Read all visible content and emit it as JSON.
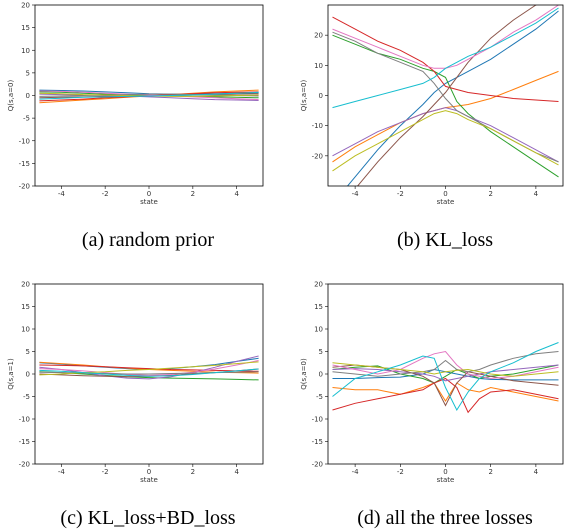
{
  "figure": {
    "colors": [
      "#1f77b4",
      "#ff7f0e",
      "#2ca02c",
      "#d62728",
      "#9467bd",
      "#8c564b",
      "#e377c2",
      "#7f7f7f",
      "#bcbd22",
      "#17becf"
    ]
  },
  "chart_data": [
    {
      "type": "line",
      "caption": "(a) random prior",
      "xlabel": "state",
      "ylabel": "Q(s,a=0)",
      "xlim": [
        -5.2,
        5.2
      ],
      "ylim": [
        -20,
        20
      ],
      "xticks": [
        "-4",
        "-2",
        "0",
        "2",
        "4"
      ],
      "yticks": [
        "20",
        "15",
        "10",
        "5",
        "0",
        "-5",
        "-10",
        "-15",
        "-20"
      ],
      "x": [
        -5,
        -4,
        -3,
        -2,
        -1,
        0,
        1,
        2,
        3,
        4,
        5
      ],
      "series": [
        {
          "values": [
            1.2,
            1.1,
            1.0,
            0.8,
            0.6,
            0.4,
            0.3,
            0.3,
            0.4,
            0.5,
            0.6
          ]
        },
        {
          "values": [
            -1.6,
            -1.3,
            -1.0,
            -0.7,
            -0.4,
            -0.1,
            0.2,
            0.5,
            0.8,
            1.0,
            1.2
          ]
        },
        {
          "values": [
            0.8,
            0.7,
            0.5,
            0.3,
            0.1,
            0.0,
            -0.1,
            -0.2,
            -0.3,
            -0.4,
            -0.5
          ]
        },
        {
          "values": [
            -1.2,
            -1.0,
            -0.8,
            -0.5,
            -0.3,
            0.0,
            0.2,
            0.4,
            0.6,
            0.7,
            0.8
          ]
        },
        {
          "values": [
            0.3,
            0.2,
            0.1,
            0.0,
            -0.1,
            -0.3,
            -0.5,
            -0.7,
            -0.9,
            -1.0,
            -1.1
          ]
        },
        {
          "values": [
            -0.5,
            -0.4,
            -0.3,
            -0.2,
            -0.2,
            -0.1,
            0.0,
            0.1,
            0.2,
            0.3,
            0.4
          ]
        },
        {
          "values": [
            1.0,
            0.9,
            0.7,
            0.5,
            0.3,
            0.1,
            -0.1,
            -0.3,
            -0.5,
            -0.7,
            -0.9
          ]
        },
        {
          "values": [
            -0.2,
            -0.1,
            0.0,
            0.1,
            0.2,
            0.3,
            0.3,
            0.2,
            0.1,
            0.0,
            -0.1
          ]
        },
        {
          "values": [
            0.5,
            0.4,
            0.2,
            0.1,
            0.0,
            -0.1,
            -0.2,
            -0.2,
            -0.1,
            0.0,
            0.1
          ]
        },
        {
          "values": [
            -0.8,
            -0.6,
            -0.4,
            -0.3,
            -0.2,
            -0.1,
            0.0,
            0.1,
            0.3,
            0.5,
            0.7
          ]
        }
      ]
    },
    {
      "type": "line",
      "caption": "(b) KL_loss",
      "xlabel": "state",
      "ylabel": "Q(s,a=0)",
      "xlim": [
        -5.2,
        5.2
      ],
      "ylim": [
        -30,
        30
      ],
      "xticks": [
        "-4",
        "-2",
        "0",
        "2",
        "4"
      ],
      "yticks": [
        "20",
        "10",
        "0",
        "-10",
        "-20"
      ],
      "x": [
        -5,
        -4,
        -3,
        -2,
        -1,
        -0.5,
        0,
        0.5,
        1,
        2,
        3,
        4,
        5
      ],
      "series": [
        {
          "values": [
            -36,
            -27,
            -18,
            -10,
            -3,
            1,
            4,
            6,
            8,
            12,
            17,
            22,
            28
          ]
        },
        {
          "values": [
            -22,
            -17,
            -13,
            -9,
            -6,
            -5,
            -4,
            -3.5,
            -3,
            -1,
            2,
            5,
            8
          ]
        },
        {
          "values": [
            20,
            17,
            14,
            12,
            9,
            8,
            6,
            -2,
            -6,
            -12,
            -17,
            -22,
            -27
          ]
        },
        {
          "values": [
            26,
            22,
            18,
            15,
            11,
            8,
            3,
            2,
            1,
            0,
            -1,
            -1.5,
            -2
          ]
        },
        {
          "values": [
            -20,
            -16,
            -12,
            -9,
            -6,
            -5,
            -4,
            -5,
            -7,
            -10,
            -14,
            -18,
            -22
          ]
        },
        {
          "values": [
            -40,
            -31,
            -22,
            -14,
            -7,
            -3,
            1,
            6,
            11,
            19,
            25,
            30,
            34
          ]
        },
        {
          "values": [
            22,
            19,
            16,
            13,
            10,
            9,
            9,
            10,
            12,
            16,
            21,
            25,
            30
          ]
        },
        {
          "values": [
            21,
            18,
            14,
            11,
            8,
            4,
            -1,
            -5,
            -7,
            -11,
            -15,
            -19,
            -22
          ]
        },
        {
          "values": [
            -25,
            -20,
            -16,
            -12,
            -8,
            -6,
            -5,
            -6,
            -8,
            -11,
            -15,
            -19,
            -23
          ]
        },
        {
          "values": [
            -4,
            -2,
            0,
            2,
            4,
            6,
            9,
            11,
            13,
            16,
            20,
            24,
            29
          ]
        }
      ]
    },
    {
      "type": "line",
      "caption": "(c) KL_loss+BD_loss",
      "xlabel": "state",
      "ylabel": "Q(s,a=1)",
      "xlim": [
        -5.2,
        5.2
      ],
      "ylim": [
        -20,
        20
      ],
      "xticks": [
        "-4",
        "-2",
        "0",
        "2",
        "4"
      ],
      "yticks": [
        "20",
        "15",
        "10",
        "5",
        "0",
        "-5",
        "-10",
        "-15",
        "-20"
      ],
      "x": [
        -5,
        -4,
        -3,
        -2,
        -1,
        0,
        1,
        2,
        3,
        4,
        5
      ],
      "series": [
        {
          "values": [
            2.5,
            2.2,
            1.8,
            1.5,
            1.2,
            1.0,
            1.2,
            1.6,
            2.1,
            2.8,
            3.5
          ]
        },
        {
          "values": [
            2.6,
            2.3,
            2.0,
            1.6,
            1.3,
            1.0,
            0.8,
            0.6,
            0.4,
            0.3,
            0.2
          ]
        },
        {
          "values": [
            0.5,
            0.3,
            0.0,
            -0.3,
            -0.6,
            -0.8,
            -0.9,
            -1.0,
            -1.1,
            -1.2,
            -1.3
          ]
        },
        {
          "values": [
            2.0,
            1.9,
            1.8,
            1.6,
            1.4,
            1.2,
            1.0,
            0.9,
            0.8,
            0.7,
            0.6
          ]
        },
        {
          "values": [
            1.5,
            1.0,
            0.3,
            -0.4,
            -0.9,
            -1.1,
            -0.6,
            0.3,
            1.5,
            2.8,
            4.0
          ]
        },
        {
          "values": [
            0.0,
            -0.2,
            -0.4,
            -0.5,
            -0.6,
            -0.5,
            -0.3,
            0.0,
            0.3,
            0.7,
            1.1
          ]
        },
        {
          "values": [
            1.2,
            1.0,
            0.7,
            0.3,
            -0.1,
            -0.3,
            -0.1,
            0.4,
            1.1,
            2.0,
            3.0
          ]
        },
        {
          "values": [
            0.4,
            0.3,
            0.2,
            0.1,
            0.0,
            0.0,
            0.1,
            0.2,
            0.3,
            0.4,
            0.5
          ]
        },
        {
          "values": [
            -0.2,
            0.0,
            0.3,
            0.5,
            0.8,
            1.0,
            1.3,
            1.6,
            1.9,
            2.3,
            2.7
          ]
        },
        {
          "values": [
            0.8,
            0.6,
            0.3,
            0.0,
            -0.3,
            -0.5,
            -0.4,
            -0.1,
            0.3,
            0.7,
            1.1
          ]
        }
      ]
    },
    {
      "type": "line",
      "caption": "(d) all the three losses",
      "xlabel": "state",
      "ylabel": "Q(s,a=0)",
      "xlim": [
        -5.2,
        5.2
      ],
      "ylim": [
        -20,
        20
      ],
      "xticks": [
        "-4",
        "-2",
        "0",
        "2",
        "4"
      ],
      "yticks": [
        "20",
        "15",
        "10",
        "5",
        "0",
        "-5",
        "-10",
        "-15",
        "-20"
      ],
      "x": [
        -5,
        -4,
        -3,
        -2,
        -1,
        -0.5,
        0,
        0.5,
        1,
        1.5,
        2,
        3,
        4,
        5
      ],
      "series": [
        {
          "values": [
            -1.0,
            -1.0,
            -0.8,
            -0.7,
            0.0,
            1.0,
            0.5,
            0.0,
            -0.5,
            -1.0,
            -1.2,
            -1.3,
            -1.3,
            -1.3
          ]
        },
        {
          "values": [
            -3.0,
            -3.5,
            -3.5,
            -4.5,
            -3.0,
            -2.0,
            -6.0,
            -2.0,
            -3.5,
            -4.0,
            -3.0,
            -4.0,
            -5.0,
            -6.0
          ]
        },
        {
          "values": [
            1.0,
            1.5,
            1.8,
            0.0,
            -1.0,
            -2.0,
            -0.5,
            1.0,
            0.0,
            -1.0,
            -0.5,
            0.0,
            1.0,
            2.0
          ]
        },
        {
          "values": [
            -8.0,
            -6.5,
            -5.5,
            -4.5,
            -3.5,
            -2.0,
            -1.0,
            -3.0,
            -8.5,
            -5.5,
            -4.0,
            -3.5,
            -4.5,
            -5.5
          ]
        },
        {
          "values": [
            1.0,
            1.2,
            1.0,
            0.5,
            0.0,
            -0.5,
            -1.5,
            -1.0,
            -0.5,
            0.0,
            0.5,
            1.0,
            1.5,
            2.0
          ]
        },
        {
          "values": [
            1.5,
            2.0,
            1.5,
            1.0,
            -0.5,
            -2.0,
            -7.0,
            -2.0,
            0.5,
            0.0,
            -0.5,
            -1.5,
            -2.0,
            -2.5
          ]
        },
        {
          "values": [
            2.0,
            1.0,
            0.0,
            1.0,
            3.5,
            4.5,
            5.0,
            2.0,
            0.0,
            -0.5,
            -1.0,
            -0.5,
            0.5,
            1.5
          ]
        },
        {
          "values": [
            0.5,
            0.0,
            -0.5,
            0.0,
            0.5,
            1.0,
            3.0,
            1.0,
            0.5,
            1.0,
            2.0,
            3.5,
            4.5,
            5.0
          ]
        },
        {
          "values": [
            2.5,
            2.0,
            1.5,
            1.0,
            0.5,
            0.0,
            0.5,
            0.8,
            1.0,
            0.5,
            0.0,
            -0.5,
            0.0,
            0.5
          ]
        },
        {
          "values": [
            -5.0,
            -1.0,
            0.5,
            2.0,
            4.0,
            3.5,
            -3.0,
            -8.0,
            -4.0,
            -1.0,
            0.5,
            2.5,
            5.0,
            7.0
          ]
        }
      ]
    }
  ]
}
